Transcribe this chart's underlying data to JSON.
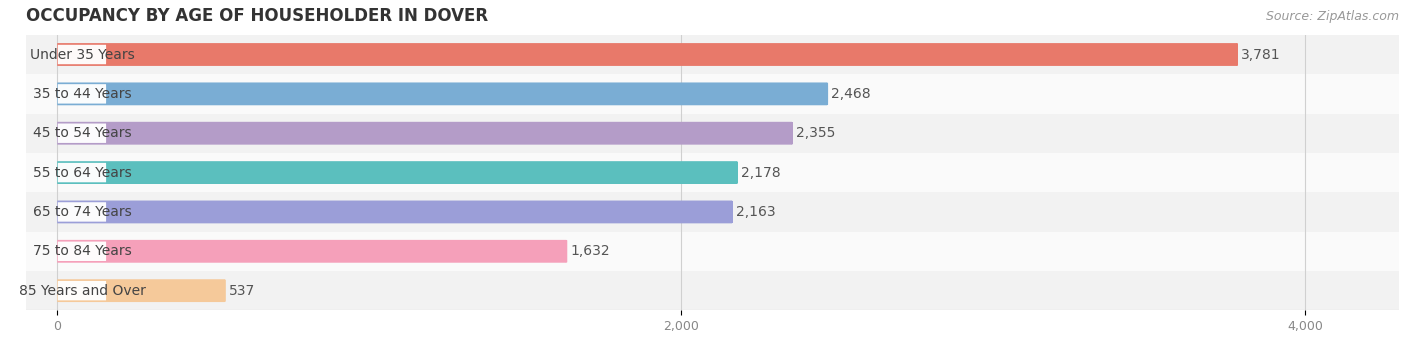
{
  "title": "OCCUPANCY BY AGE OF HOUSEHOLDER IN DOVER",
  "source": "Source: ZipAtlas.com",
  "categories": [
    "Under 35 Years",
    "35 to 44 Years",
    "45 to 54 Years",
    "55 to 64 Years",
    "65 to 74 Years",
    "75 to 84 Years",
    "85 Years and Over"
  ],
  "values": [
    3781,
    2468,
    2355,
    2178,
    2163,
    1632,
    537
  ],
  "bar_colors": [
    "#E8796A",
    "#7AADD4",
    "#B49CC8",
    "#5BBFBE",
    "#9B9ED8",
    "#F5A0BA",
    "#F5C99A"
  ],
  "background_color": "#FFFFFF",
  "row_bg_even": "#F2F2F2",
  "row_bg_odd": "#FAFAFA",
  "row_separator": "#E0E0E0",
  "xlim_min": -100,
  "xlim_max": 4300,
  "xticks": [
    0,
    2000,
    4000
  ],
  "title_fontsize": 12,
  "source_fontsize": 9,
  "bar_label_fontsize": 10,
  "category_fontsize": 10,
  "label_bg_color": "#FFFFFF",
  "label_text_color": "#444444",
  "value_label_color": "#555555"
}
